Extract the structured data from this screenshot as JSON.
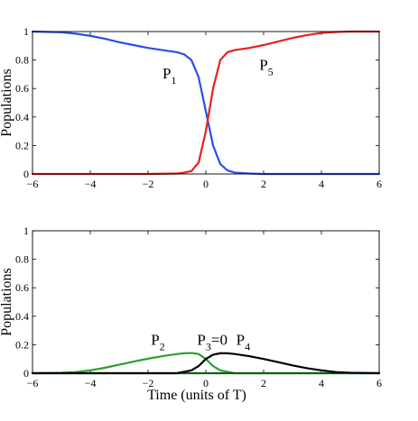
{
  "chart_data": [
    {
      "type": "line",
      "xlim": [
        -6,
        6
      ],
      "ylim": [
        0,
        1
      ],
      "xticks": [
        -6,
        -4,
        -2,
        0,
        2,
        4,
        6
      ],
      "yticks": [
        0,
        0.2,
        0.4,
        0.6,
        0.8,
        1
      ],
      "xtick_labels": [
        "−6",
        "−4",
        "−2",
        "0",
        "2",
        "4",
        "6"
      ],
      "ytick_labels": [
        "0",
        "0.2",
        "0.4",
        "0.6",
        "0.8",
        "1"
      ],
      "xlabel": "",
      "ylabel": "Populations",
      "grid": false,
      "series": [
        {
          "name": "P1",
          "color": "#2b4ee8",
          "x": [
            -6,
            -5,
            -4.5,
            -4,
            -3.5,
            -3,
            -2.5,
            -2,
            -1.5,
            -1,
            -0.75,
            -0.5,
            -0.25,
            0,
            0.25,
            0.5,
            0.75,
            1,
            1.5,
            2,
            3,
            4,
            6
          ],
          "y": [
            1.0,
            0.995,
            0.985,
            0.97,
            0.95,
            0.925,
            0.905,
            0.885,
            0.87,
            0.855,
            0.84,
            0.8,
            0.68,
            0.44,
            0.2,
            0.07,
            0.025,
            0.01,
            0.003,
            0.0,
            0.0,
            0.0,
            0.0
          ]
        },
        {
          "name": "P5",
          "color": "#e82020",
          "x": [
            -6,
            -4,
            -2,
            -1,
            -0.75,
            -0.5,
            -0.25,
            0,
            0.25,
            0.5,
            0.75,
            1,
            1.5,
            2,
            2.5,
            3,
            3.5,
            4,
            4.5,
            5,
            6
          ],
          "y": [
            0.0,
            0.0,
            0.0,
            0.003,
            0.01,
            0.02,
            0.08,
            0.3,
            0.6,
            0.8,
            0.855,
            0.87,
            0.885,
            0.905,
            0.93,
            0.955,
            0.975,
            0.99,
            0.997,
            1.0,
            1.0
          ]
        }
      ],
      "annotations": [
        {
          "base": "P",
          "sub": "1",
          "x": -1.5,
          "y": 0.67
        },
        {
          "base": "P",
          "sub": "5",
          "x": 1.85,
          "y": 0.73
        }
      ]
    },
    {
      "type": "line",
      "xlim": [
        -6,
        6
      ],
      "ylim": [
        0,
        1
      ],
      "xticks": [
        -6,
        -4,
        -2,
        0,
        2,
        4,
        6
      ],
      "yticks": [
        0,
        0.2,
        0.4,
        0.6,
        0.8,
        1
      ],
      "xtick_labels": [
        "−6",
        "−4",
        "−2",
        "0",
        "2",
        "4",
        "6"
      ],
      "ytick_labels": [
        "0",
        "0.2",
        "0.4",
        "0.6",
        "0.8",
        "1"
      ],
      "xlabel": "Time (units of T)",
      "ylabel": "Populations",
      "grid": false,
      "series": [
        {
          "name": "P2",
          "color": "#2ca02c",
          "x": [
            -6,
            -5,
            -4.5,
            -4,
            -3.5,
            -3,
            -2.5,
            -2,
            -1.5,
            -1,
            -0.75,
            -0.5,
            -0.25,
            0,
            0.25,
            0.5,
            1,
            2,
            6
          ],
          "y": [
            0.0,
            0.003,
            0.008,
            0.02,
            0.038,
            0.06,
            0.082,
            0.102,
            0.12,
            0.135,
            0.14,
            0.142,
            0.135,
            0.1,
            0.05,
            0.02,
            0.0,
            0.0,
            0.0
          ],
          "label": {
            "base": "P",
            "sub": "2",
            "x": -1.9,
            "y": 0.2
          }
        },
        {
          "name": "P3=0",
          "color": "#2ca02c",
          "x": [
            -6,
            6
          ],
          "y": [
            0,
            0
          ],
          "label": {
            "base": "P",
            "sub": "3",
            "suffix": "=0",
            "x": -0.3,
            "y": 0.2
          }
        },
        {
          "name": "P4",
          "color": "#000000",
          "x": [
            -6,
            -1,
            -0.5,
            -0.25,
            0,
            0.25,
            0.5,
            0.75,
            1,
            1.5,
            2,
            2.5,
            3,
            3.5,
            4,
            4.5,
            5,
            6
          ],
          "y": [
            0.0,
            0.0,
            0.02,
            0.05,
            0.1,
            0.13,
            0.14,
            0.14,
            0.135,
            0.12,
            0.1,
            0.078,
            0.055,
            0.035,
            0.02,
            0.008,
            0.003,
            0.0
          ],
          "label": {
            "base": "P",
            "sub": "4",
            "x": 1.05,
            "y": 0.2
          }
        }
      ]
    }
  ]
}
